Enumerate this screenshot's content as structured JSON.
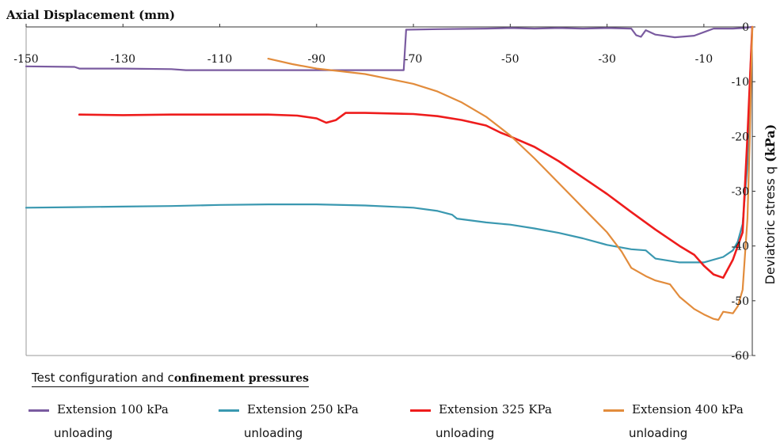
{
  "chart_data": {
    "type": "line",
    "xlabel": "Axial Displacement (mm)",
    "ylabel_main": "Deviatoric stress q ",
    "ylabel_unit": "(kPa)",
    "xlim": [
      -150,
      0
    ],
    "ylim": [
      -60,
      0
    ],
    "x_ticks": [
      -150,
      -130,
      -110,
      -90,
      -70,
      -50,
      -30,
      -10
    ],
    "y_ticks": [
      0,
      -10,
      -20,
      -30,
      -40,
      -50,
      -60
    ],
    "grid": false,
    "legend_title": {
      "plain": "Test configuration and c",
      "bold": "onfinement pressures"
    },
    "series": [
      {
        "name_line1": "Extension 100 kPa",
        "name_line2": "unloading",
        "color": "#7a5ba0",
        "points": [
          [
            -150,
            -7.2
          ],
          [
            -140,
            -7.3
          ],
          [
            -139,
            -7.6
          ],
          [
            -130,
            -7.6
          ],
          [
            -120,
            -7.7
          ],
          [
            -117,
            -7.9
          ],
          [
            -110,
            -7.9
          ],
          [
            -100,
            -7.9
          ],
          [
            -90,
            -7.9
          ],
          [
            -80,
            -7.9
          ],
          [
            -72,
            -7.9
          ],
          [
            -71.5,
            -0.5
          ],
          [
            -65,
            -0.4
          ],
          [
            -55,
            -0.3
          ],
          [
            -50,
            -0.2
          ],
          [
            -45,
            -0.3
          ],
          [
            -40,
            -0.2
          ],
          [
            -35,
            -0.3
          ],
          [
            -30,
            -0.2
          ],
          [
            -25,
            -0.3
          ],
          [
            -24,
            -1.5
          ],
          [
            -23,
            -1.8
          ],
          [
            -22,
            -0.6
          ],
          [
            -20,
            -1.4
          ],
          [
            -16,
            -1.9
          ],
          [
            -12,
            -1.6
          ],
          [
            -8,
            -0.3
          ],
          [
            -4,
            -0.3
          ],
          [
            -2,
            -0.2
          ],
          [
            0,
            0
          ]
        ]
      },
      {
        "name_line1": "Extension 250 kPa",
        "name_line2": "unloading",
        "color": "#3a98b0",
        "points": [
          [
            -150,
            -33
          ],
          [
            -140,
            -32.9
          ],
          [
            -130,
            -32.8
          ],
          [
            -120,
            -32.7
          ],
          [
            -110,
            -32.5
          ],
          [
            -100,
            -32.4
          ],
          [
            -90,
            -32.4
          ],
          [
            -80,
            -32.6
          ],
          [
            -70,
            -33
          ],
          [
            -65,
            -33.6
          ],
          [
            -62,
            -34.3
          ],
          [
            -61,
            -35
          ],
          [
            -55,
            -35.7
          ],
          [
            -50,
            -36.1
          ],
          [
            -45,
            -36.8
          ],
          [
            -40,
            -37.6
          ],
          [
            -35,
            -38.6
          ],
          [
            -30,
            -39.8
          ],
          [
            -25,
            -40.6
          ],
          [
            -22,
            -40.8
          ],
          [
            -20,
            -42.3
          ],
          [
            -15,
            -43
          ],
          [
            -10,
            -43
          ],
          [
            -6,
            -42
          ],
          [
            -4,
            -40.8
          ],
          [
            -3,
            -39.2
          ],
          [
            -2,
            -36
          ],
          [
            -1,
            -25
          ],
          [
            -0.5,
            -10
          ],
          [
            0,
            0
          ]
        ]
      },
      {
        "name_line1": "Extension 325 KPa",
        "name_line2": "unloading",
        "color": "#ee1c1c",
        "points": [
          [
            -139,
            -16
          ],
          [
            -130,
            -16.1
          ],
          [
            -120,
            -16
          ],
          [
            -110,
            -16
          ],
          [
            -100,
            -16
          ],
          [
            -94,
            -16.2
          ],
          [
            -90,
            -16.7
          ],
          [
            -88,
            -17.5
          ],
          [
            -86,
            -17
          ],
          [
            -84,
            -15.7
          ],
          [
            -80,
            -15.7
          ],
          [
            -70,
            -15.9
          ],
          [
            -65,
            -16.3
          ],
          [
            -60,
            -17
          ],
          [
            -55,
            -18
          ],
          [
            -52,
            -19.3
          ],
          [
            -50,
            -20
          ],
          [
            -45,
            -21.9
          ],
          [
            -40,
            -24.5
          ],
          [
            -35,
            -27.5
          ],
          [
            -30,
            -30.5
          ],
          [
            -25,
            -33.8
          ],
          [
            -20,
            -37
          ],
          [
            -15,
            -40
          ],
          [
            -12,
            -41.6
          ],
          [
            -10,
            -43.6
          ],
          [
            -8,
            -45.2
          ],
          [
            -6,
            -45.8
          ],
          [
            -4,
            -42.5
          ],
          [
            -2,
            -37.5
          ],
          [
            -1,
            -20
          ],
          [
            0,
            0
          ]
        ]
      },
      {
        "name_line1": "Extension 400 kPa",
        "name_line2": "unloading",
        "color": "#e28c3c",
        "points": [
          [
            -100,
            -5.8
          ],
          [
            -95,
            -6.8
          ],
          [
            -90,
            -7.6
          ],
          [
            -85,
            -8.1
          ],
          [
            -80,
            -8.6
          ],
          [
            -75,
            -9.5
          ],
          [
            -70,
            -10.4
          ],
          [
            -65,
            -11.8
          ],
          [
            -60,
            -13.8
          ],
          [
            -55,
            -16.4
          ],
          [
            -50,
            -19.8
          ],
          [
            -45,
            -24
          ],
          [
            -40,
            -28.5
          ],
          [
            -35,
            -33
          ],
          [
            -30,
            -37.5
          ],
          [
            -27,
            -41
          ],
          [
            -25,
            -44
          ],
          [
            -22,
            -45.5
          ],
          [
            -20,
            -46.3
          ],
          [
            -17,
            -47
          ],
          [
            -15,
            -49.3
          ],
          [
            -12,
            -51.5
          ],
          [
            -10,
            -52.5
          ],
          [
            -8,
            -53.3
          ],
          [
            -7,
            -53.5
          ],
          [
            -6,
            -52
          ],
          [
            -4,
            -52.3
          ],
          [
            -3,
            -51
          ],
          [
            -2,
            -48
          ],
          [
            -1,
            -35
          ],
          [
            -0.5,
            -20
          ],
          [
            0,
            0
          ]
        ]
      }
    ]
  }
}
